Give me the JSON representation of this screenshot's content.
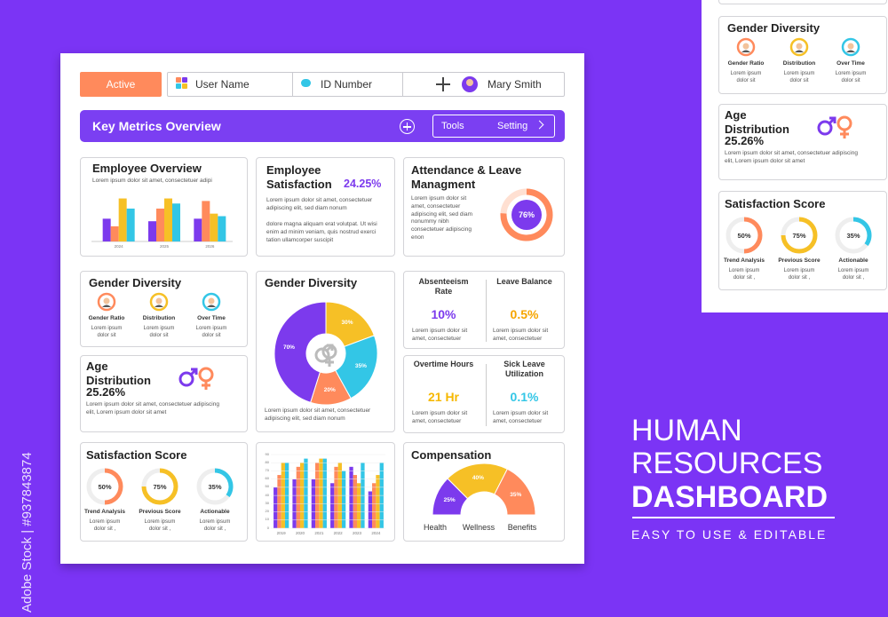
{
  "watermark": "Adobe Stock | #937843874",
  "topbar": {
    "active": "Active",
    "user": "User Name",
    "id": "ID Number",
    "profile": "Mary Smith"
  },
  "header": {
    "title": "Key Metrics Overview",
    "tools": "Tools",
    "setting": "Setting"
  },
  "employee_overview": {
    "title": "Employee Overview",
    "text": "Lorem ipsum dolor sit amet, consectetuer adipi",
    "chart": {
      "type": "bar",
      "categories": [
        "2024",
        "2025",
        "2026"
      ],
      "ylim": [
        0,
        100
      ],
      "series": [
        {
          "color": "#7c3aed",
          "values": [
            45,
            40,
            45
          ]
        },
        {
          "color": "#ff8a5c",
          "values": [
            30,
            65,
            80
          ]
        },
        {
          "color": "#f6c026",
          "values": [
            85,
            85,
            55
          ]
        },
        {
          "color": "#33c6e6",
          "values": [
            65,
            75,
            50
          ]
        }
      ]
    }
  },
  "employee_satisfaction": {
    "title": "Employee Satisfaction",
    "value": "24.25%",
    "text1": "Lorem ipsum dolor sit amet, consectetuer adipiscing elit, sed diam nonum",
    "text2": "dolore magna aliquam erat volutpat. Ut wisi enim ad minim veniam, quis nostrud exerci tation ullamcorper suscipit"
  },
  "attendance": {
    "title": "Attendance & Leave Managment",
    "text": "Lorem ipsum dolor sit amet, consectetuer adipiscing elit, sed diam nonummy nibh consectetuer adipiscing enon",
    "gauge": {
      "value": 76,
      "value_label": "76%",
      "color": "#ff8a5c"
    }
  },
  "gender_diversity": {
    "title": "Gender Diversity",
    "items": [
      {
        "label": "Gender Ratio",
        "text": "Lorem ipsum dolor sit",
        "color": "#ff8a5c"
      },
      {
        "label": "Distribution",
        "text": "Lorem ipsum dolor sit",
        "color": "#f6c026"
      },
      {
        "label": "Over Time",
        "text": "Lorem ipsum dolor sit",
        "color": "#33c6e6"
      }
    ]
  },
  "age_distribution": {
    "title": "Age Distribution",
    "value": "25.26%",
    "text": "Lorem ipsum dolor sit amet, consectetuer adipiscing elit, Lorem ipsum dolor sit amet"
  },
  "gender_pie": {
    "title": "Gender Diversity",
    "text": "Lorem ipsum dolor sit amet, consectetuer adipiscing elit, sed diam nonum",
    "chart": {
      "type": "pie",
      "values": [
        30,
        35,
        20,
        70
      ],
      "value_labels": [
        "30%",
        "35%",
        "20%",
        "70%"
      ],
      "colors": [
        "#f6c026",
        "#33c6e6",
        "#ff8a5c",
        "#7c3aed"
      ]
    }
  },
  "rates": [
    {
      "title": "Absenteeism Rate",
      "value": "10%",
      "color": "#7c3aed",
      "text": "Lorem ipsum dolor sit amet, consectetuer"
    },
    {
      "title": "Leave Balance",
      "value": "0.5%",
      "color": "#f6a500",
      "text": "Lorem ipsum dolor sit amet, consectetuer"
    },
    {
      "title": "Overtime Hours",
      "value": "21 Hr",
      "color": "#f6b800",
      "text": "Lorem ipsum dolor sit amet, consectetuer"
    },
    {
      "title": "Sick Leave Utilization",
      "value": "0.1%",
      "color": "#33c6e6",
      "text": "Lorem ipsum dolor sit amet, consectetuer"
    }
  ],
  "satisfaction_score": {
    "title": "Satisfaction Score",
    "items": [
      {
        "value": 50,
        "value_label": "50%",
        "color": "#ff8a5c",
        "label": "Trend Analysis",
        "text": "Lorem ipsum dolor sit ,"
      },
      {
        "value": 75,
        "value_label": "75%",
        "color": "#f6c026",
        "label": "Previous Score",
        "text": "Lorem ipsum dolor sit ,"
      },
      {
        "value": 35,
        "value_label": "35%",
        "color": "#33c6e6",
        "label": "Actionable",
        "text": "Lorem ipsum dolor sit ,"
      }
    ]
  },
  "yearly_chart": {
    "type": "bar",
    "categories": [
      "2019",
      "2020",
      "2021",
      "2022",
      "2023",
      "2024"
    ],
    "ylim": [
      0,
      90
    ],
    "yticks": [
      0,
      10,
      20,
      30,
      40,
      50,
      60,
      70,
      80,
      90
    ],
    "series": [
      {
        "color": "#7c3aed",
        "values": [
          50,
          60,
          60,
          55,
          75,
          45
        ]
      },
      {
        "color": "#ff8a5c",
        "values": [
          65,
          75,
          80,
          75,
          65,
          55
        ]
      },
      {
        "color": "#f6c026",
        "values": [
          80,
          80,
          85,
          80,
          55,
          65
        ]
      },
      {
        "color": "#33c6e6",
        "values": [
          80,
          85,
          85,
          70,
          80,
          80
        ]
      }
    ]
  },
  "compensation": {
    "title": "Compensation",
    "chart": {
      "type": "semi-donut",
      "categories": [
        "Health",
        "Wellness",
        "Benefits"
      ],
      "values": [
        25,
        40,
        35
      ],
      "value_labels": [
        "25%",
        "40%",
        "35%"
      ],
      "colors": [
        "#7c3aed",
        "#f6c026",
        "#ff8a5c"
      ]
    }
  },
  "side_panel": {
    "gender_diversity": {
      "title": "Gender Diversity",
      "items": [
        {
          "label": "Gender Ratio",
          "text": "Lorem ipsum dolor sit",
          "color": "#ff8a5c"
        },
        {
          "label": "Distribution",
          "text": "Lorem ipsum dolor sit",
          "color": "#f6c026"
        },
        {
          "label": "Over Time",
          "text": "Lorem ipsum dolor sit",
          "color": "#33c6e6"
        }
      ]
    },
    "age_distribution": {
      "title": "Age Distribution",
      "value": "25.26%",
      "text": "Lorem ipsum dolor sit amet, consectetuer adipiscing elit, Lorem ipsum dolor sit amet"
    },
    "satisfaction_score": {
      "title": "Satisfaction Score",
      "items": [
        {
          "value": 50,
          "value_label": "50%",
          "color": "#ff8a5c",
          "label": "Trend Analysis",
          "text": "Lorem ipsum dolor sit ,"
        },
        {
          "value": 75,
          "value_label": "75%",
          "color": "#f6c026",
          "label": "Previous Score",
          "text": "Lorem ipsum dolor sit ,"
        },
        {
          "value": 35,
          "value_label": "35%",
          "color": "#33c6e6",
          "label": "Actionable",
          "text": "Lorem ipsum dolor sit ,"
        }
      ]
    }
  },
  "promo": {
    "line1": "HUMAN",
    "line2": "RESOURCES",
    "line3": "DASHBOARD",
    "tagline": "EASY TO USE & EDITABLE"
  }
}
